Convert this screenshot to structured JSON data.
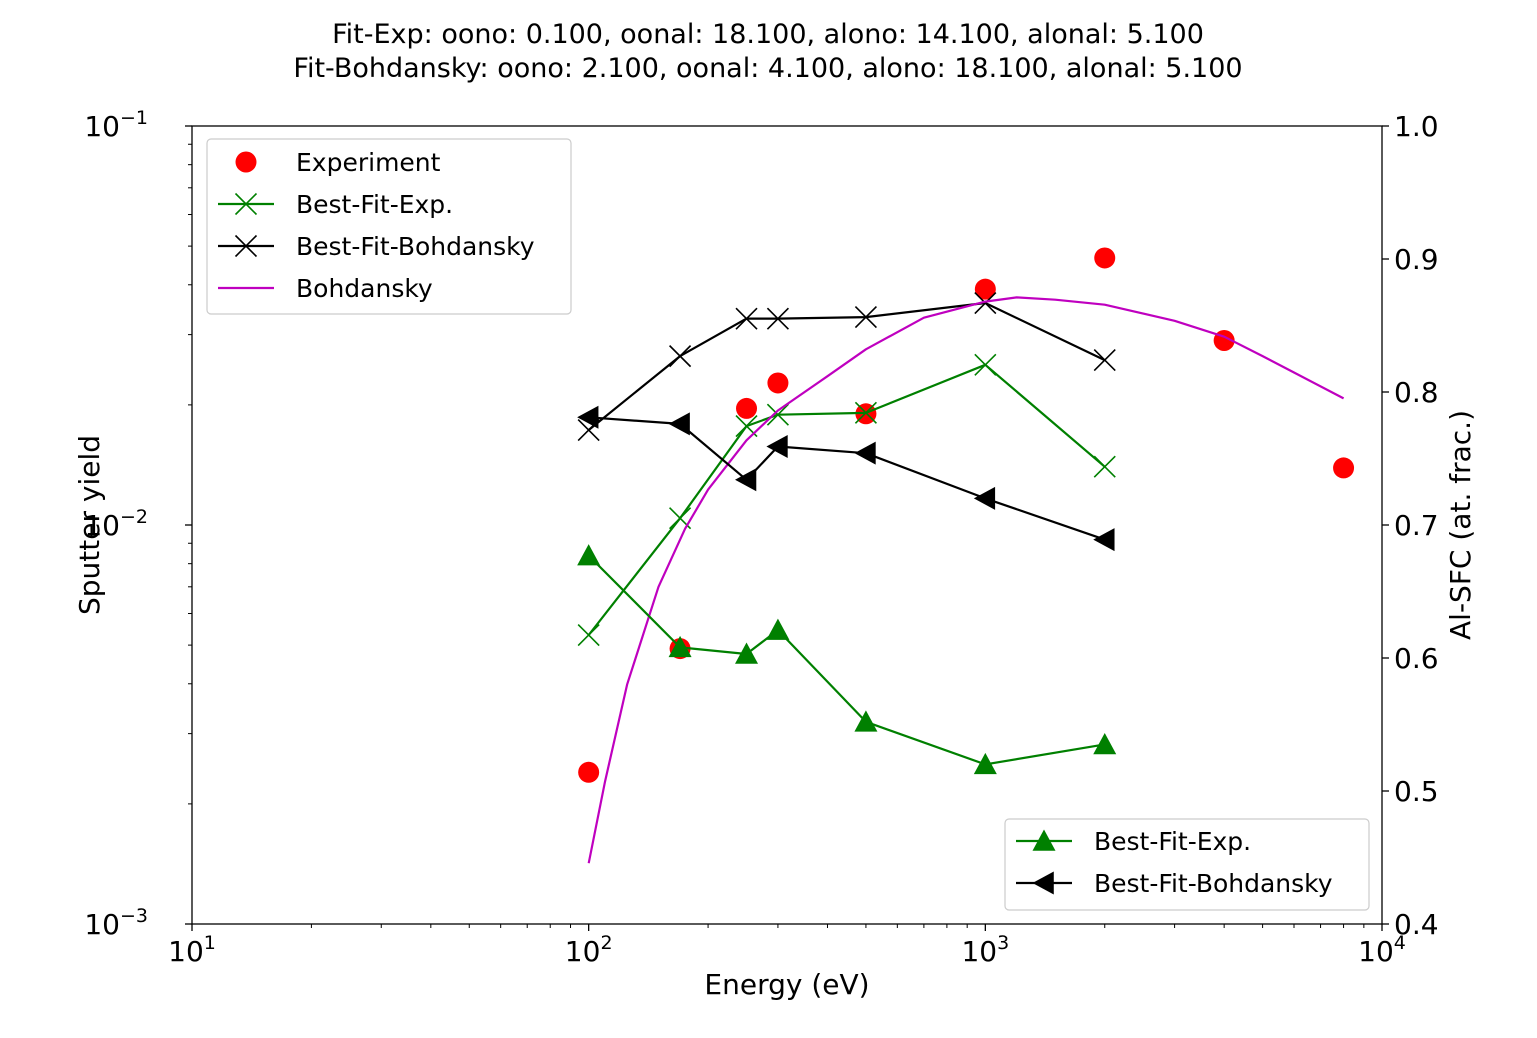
{
  "chart_data": {
    "type": "scatter",
    "title_lines": [
      "Fit-Exp: oono: 0.100, oonal: 18.100, alono: 14.100, alonal: 5.100",
      "Fit-Bohdansky: oono: 2.100, oonal: 4.100, alono: 18.100, alonal: 5.100"
    ],
    "xlabel": "Energy (eV)",
    "ylabel": "Sputter yield",
    "y2label": "Al-SFC (at. frac.)",
    "xscale": "log",
    "yscale": "log",
    "xlim": [
      10,
      10000
    ],
    "ylim": [
      0.001,
      0.1
    ],
    "y2lim": [
      0.4,
      1.0
    ],
    "x_ticks": [
      {
        "value": 10,
        "base": "10",
        "exp": "1"
      },
      {
        "value": 100,
        "base": "10",
        "exp": "2"
      },
      {
        "value": 1000,
        "base": "10",
        "exp": "3"
      },
      {
        "value": 10000,
        "base": "10",
        "exp": "4"
      }
    ],
    "y_ticks": [
      {
        "value": 0.001,
        "base": "10",
        "exp": "−3"
      },
      {
        "value": 0.01,
        "base": "10",
        "exp": "−2"
      },
      {
        "value": 0.1,
        "base": "10",
        "exp": "−1"
      }
    ],
    "y2_ticks": [
      "0.4",
      "0.5",
      "0.6",
      "0.7",
      "0.8",
      "0.9",
      "1.0"
    ],
    "grid": false,
    "legend_left": {
      "placement": "upper-left",
      "entries": [
        "Experiment",
        "Best-Fit-Exp.",
        "Best-Fit-Bohdansky",
        "Bohdansky"
      ]
    },
    "legend_right": {
      "placement": "lower-right",
      "entries": [
        "Best-Fit-Exp.",
        "Best-Fit-Bohdansky"
      ]
    },
    "series": [
      {
        "name": "Experiment",
        "axis": "left",
        "style": "marker",
        "marker": "circle",
        "color": "#ff0000",
        "x": [
          100,
          170,
          250,
          300,
          500,
          1000,
          2000,
          4000,
          8000
        ],
        "y": [
          0.0024,
          0.0049,
          0.0196,
          0.0227,
          0.019,
          0.039,
          0.0467,
          0.029,
          0.0139
        ]
      },
      {
        "name": "Best-Fit-Exp.",
        "axis": "left",
        "style": "line-marker",
        "marker": "x",
        "color": "#008000",
        "x": [
          100,
          170,
          250,
          300,
          500,
          1000,
          2000
        ],
        "y": [
          0.0053,
          0.0104,
          0.0177,
          0.0189,
          0.0191,
          0.0252,
          0.014
        ]
      },
      {
        "name": "Best-Fit-Bohdansky",
        "axis": "left",
        "style": "line-marker",
        "marker": "x",
        "color": "#000000",
        "x": [
          100,
          170,
          250,
          300,
          500,
          1000,
          2000
        ],
        "y": [
          0.0173,
          0.0265,
          0.0329,
          0.0329,
          0.0332,
          0.036,
          0.0259
        ]
      },
      {
        "name": "Bohdansky",
        "axis": "left",
        "style": "line",
        "color": "#bf00bf",
        "x": [
          100,
          110,
          125,
          150,
          175,
          200,
          250,
          300,
          400,
          500,
          700,
          1000,
          1200,
          1500,
          2000,
          3000,
          4000,
          5000,
          6000,
          8000
        ],
        "y": [
          0.00142,
          0.00228,
          0.00398,
          0.007,
          0.00979,
          0.01227,
          0.0163,
          0.01936,
          0.0236,
          0.02756,
          0.03307,
          0.0363,
          0.03718,
          0.0367,
          0.03566,
          0.03249,
          0.02964,
          0.02651,
          0.02411,
          0.02076
        ]
      },
      {
        "name": "Best-Fit-Exp.",
        "axis": "right",
        "style": "line-marker",
        "marker": "triangle-up",
        "color": "#008000",
        "x": [
          100,
          170,
          250,
          300,
          500,
          1000,
          2000
        ],
        "y": [
          0.677,
          0.608,
          0.603,
          0.621,
          0.552,
          0.52,
          0.535
        ]
      },
      {
        "name": "Best-Fit-Bohdansky",
        "axis": "right",
        "style": "line-marker",
        "marker": "triangle-left",
        "color": "#000000",
        "x": [
          100,
          170,
          250,
          300,
          500,
          1000,
          2000
        ],
        "y": [
          0.781,
          0.776,
          0.734,
          0.759,
          0.754,
          0.72,
          0.689
        ]
      }
    ]
  }
}
